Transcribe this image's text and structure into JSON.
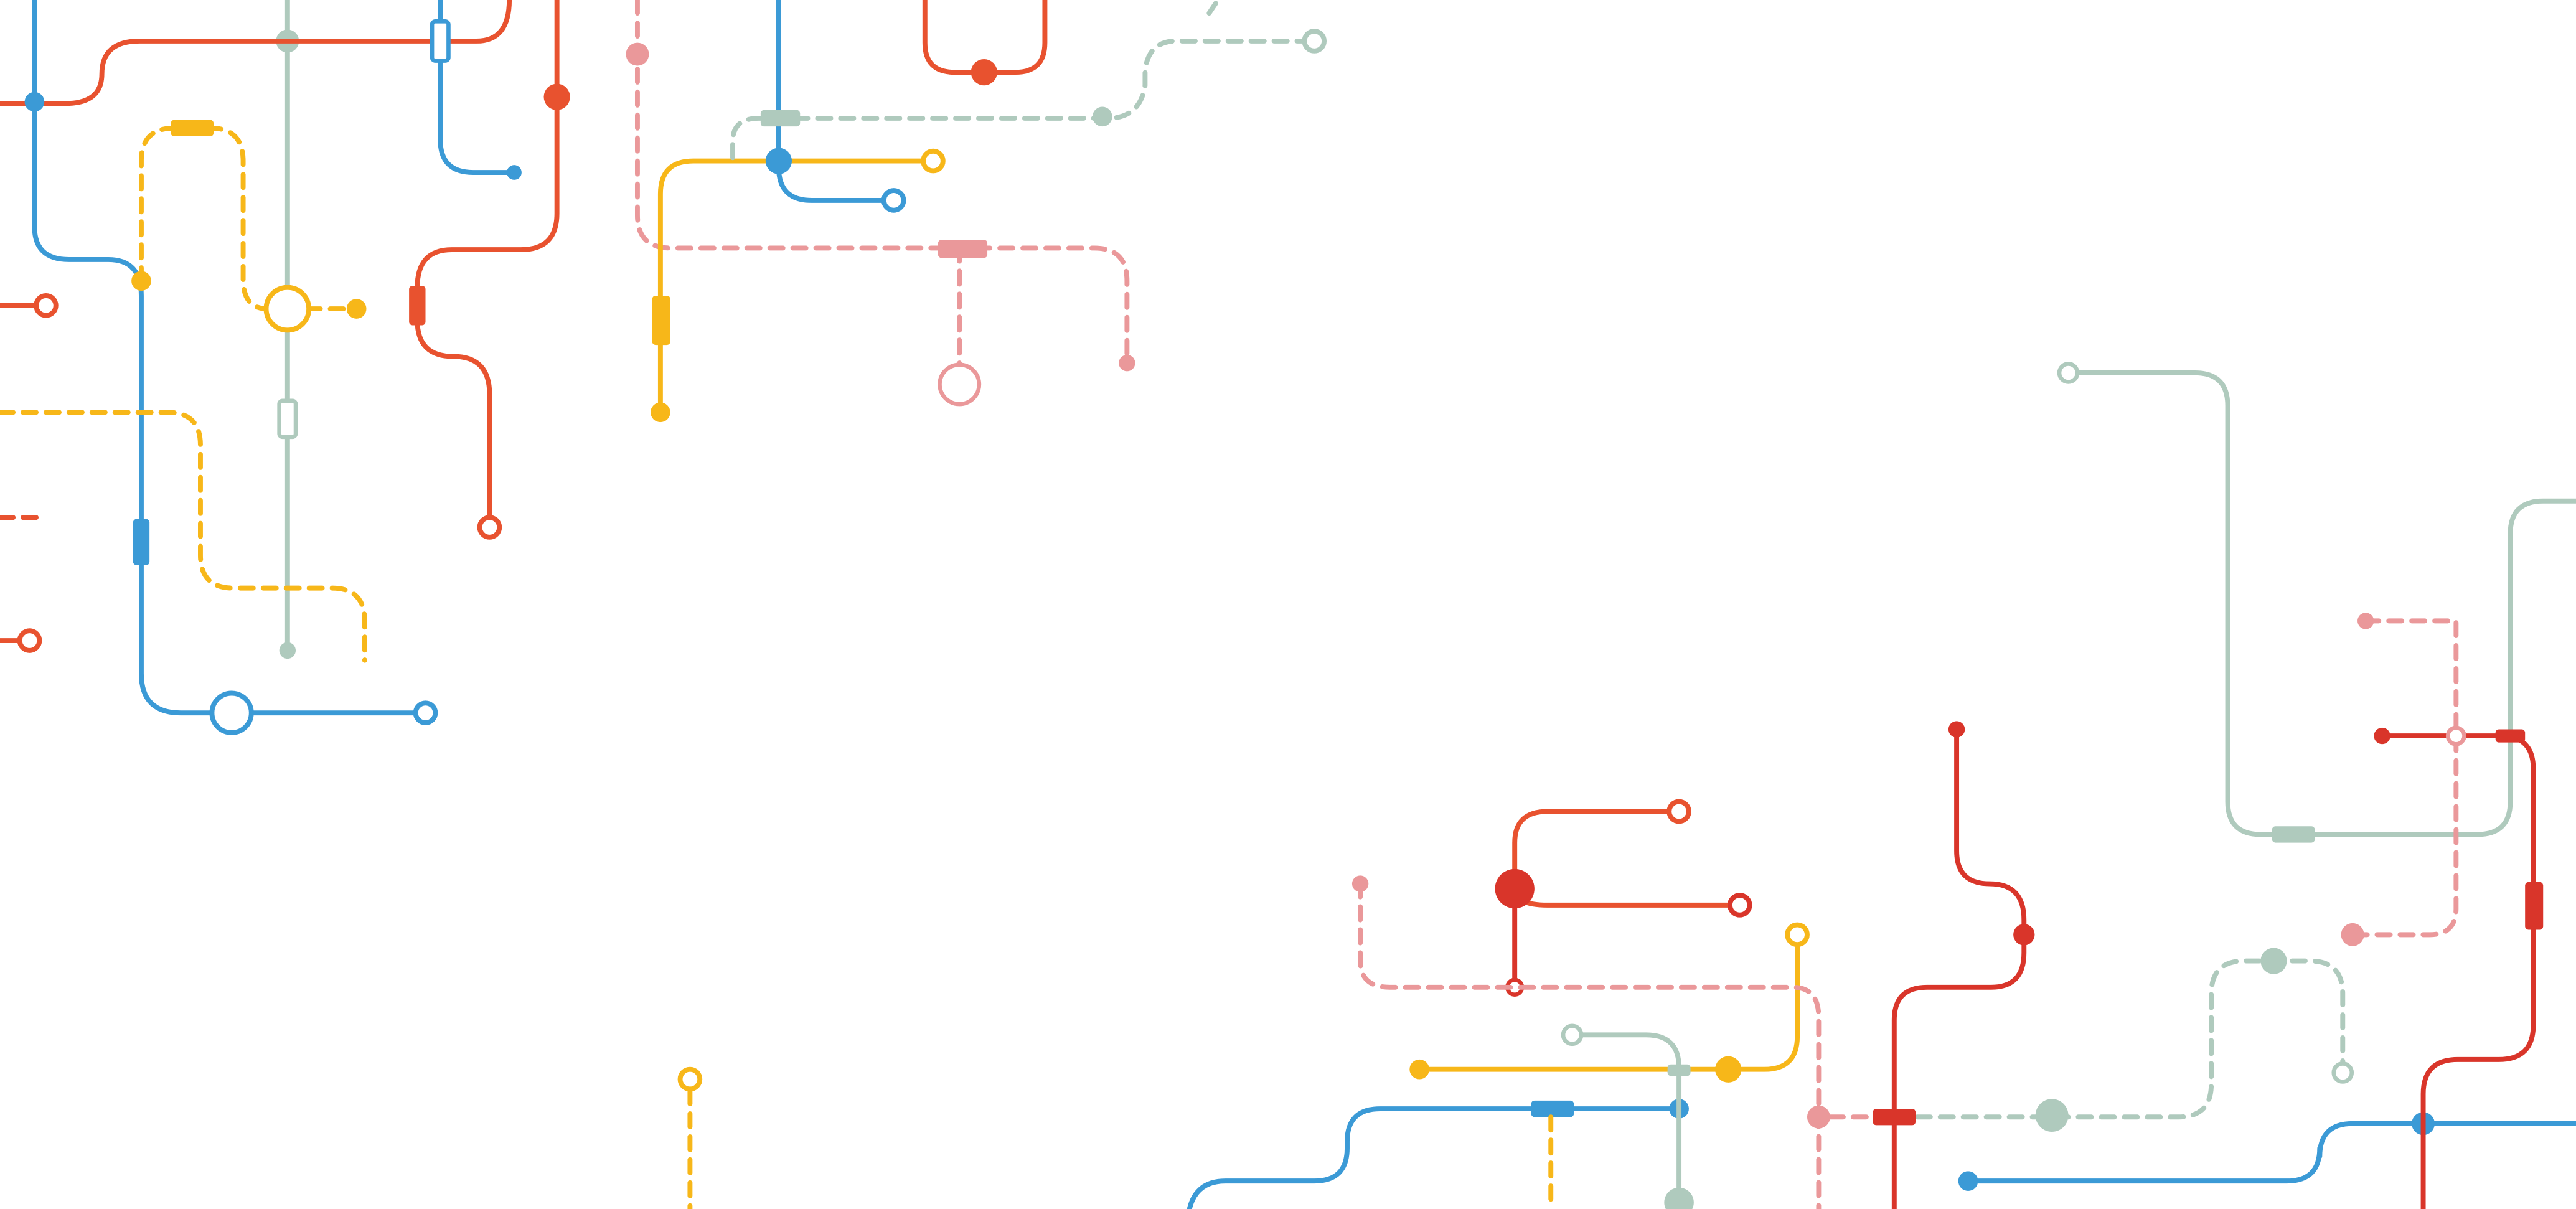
{
  "image": {
    "kind": "transit-style line illustration",
    "background": "#ffffff"
  },
  "palette": {
    "blue": "#3b9ad6",
    "orange": "#e8522f",
    "red": "#d9352a",
    "yellow": "#f7b719",
    "sage": "#afcabd",
    "pink": "#ea989a"
  },
  "text": {}
}
